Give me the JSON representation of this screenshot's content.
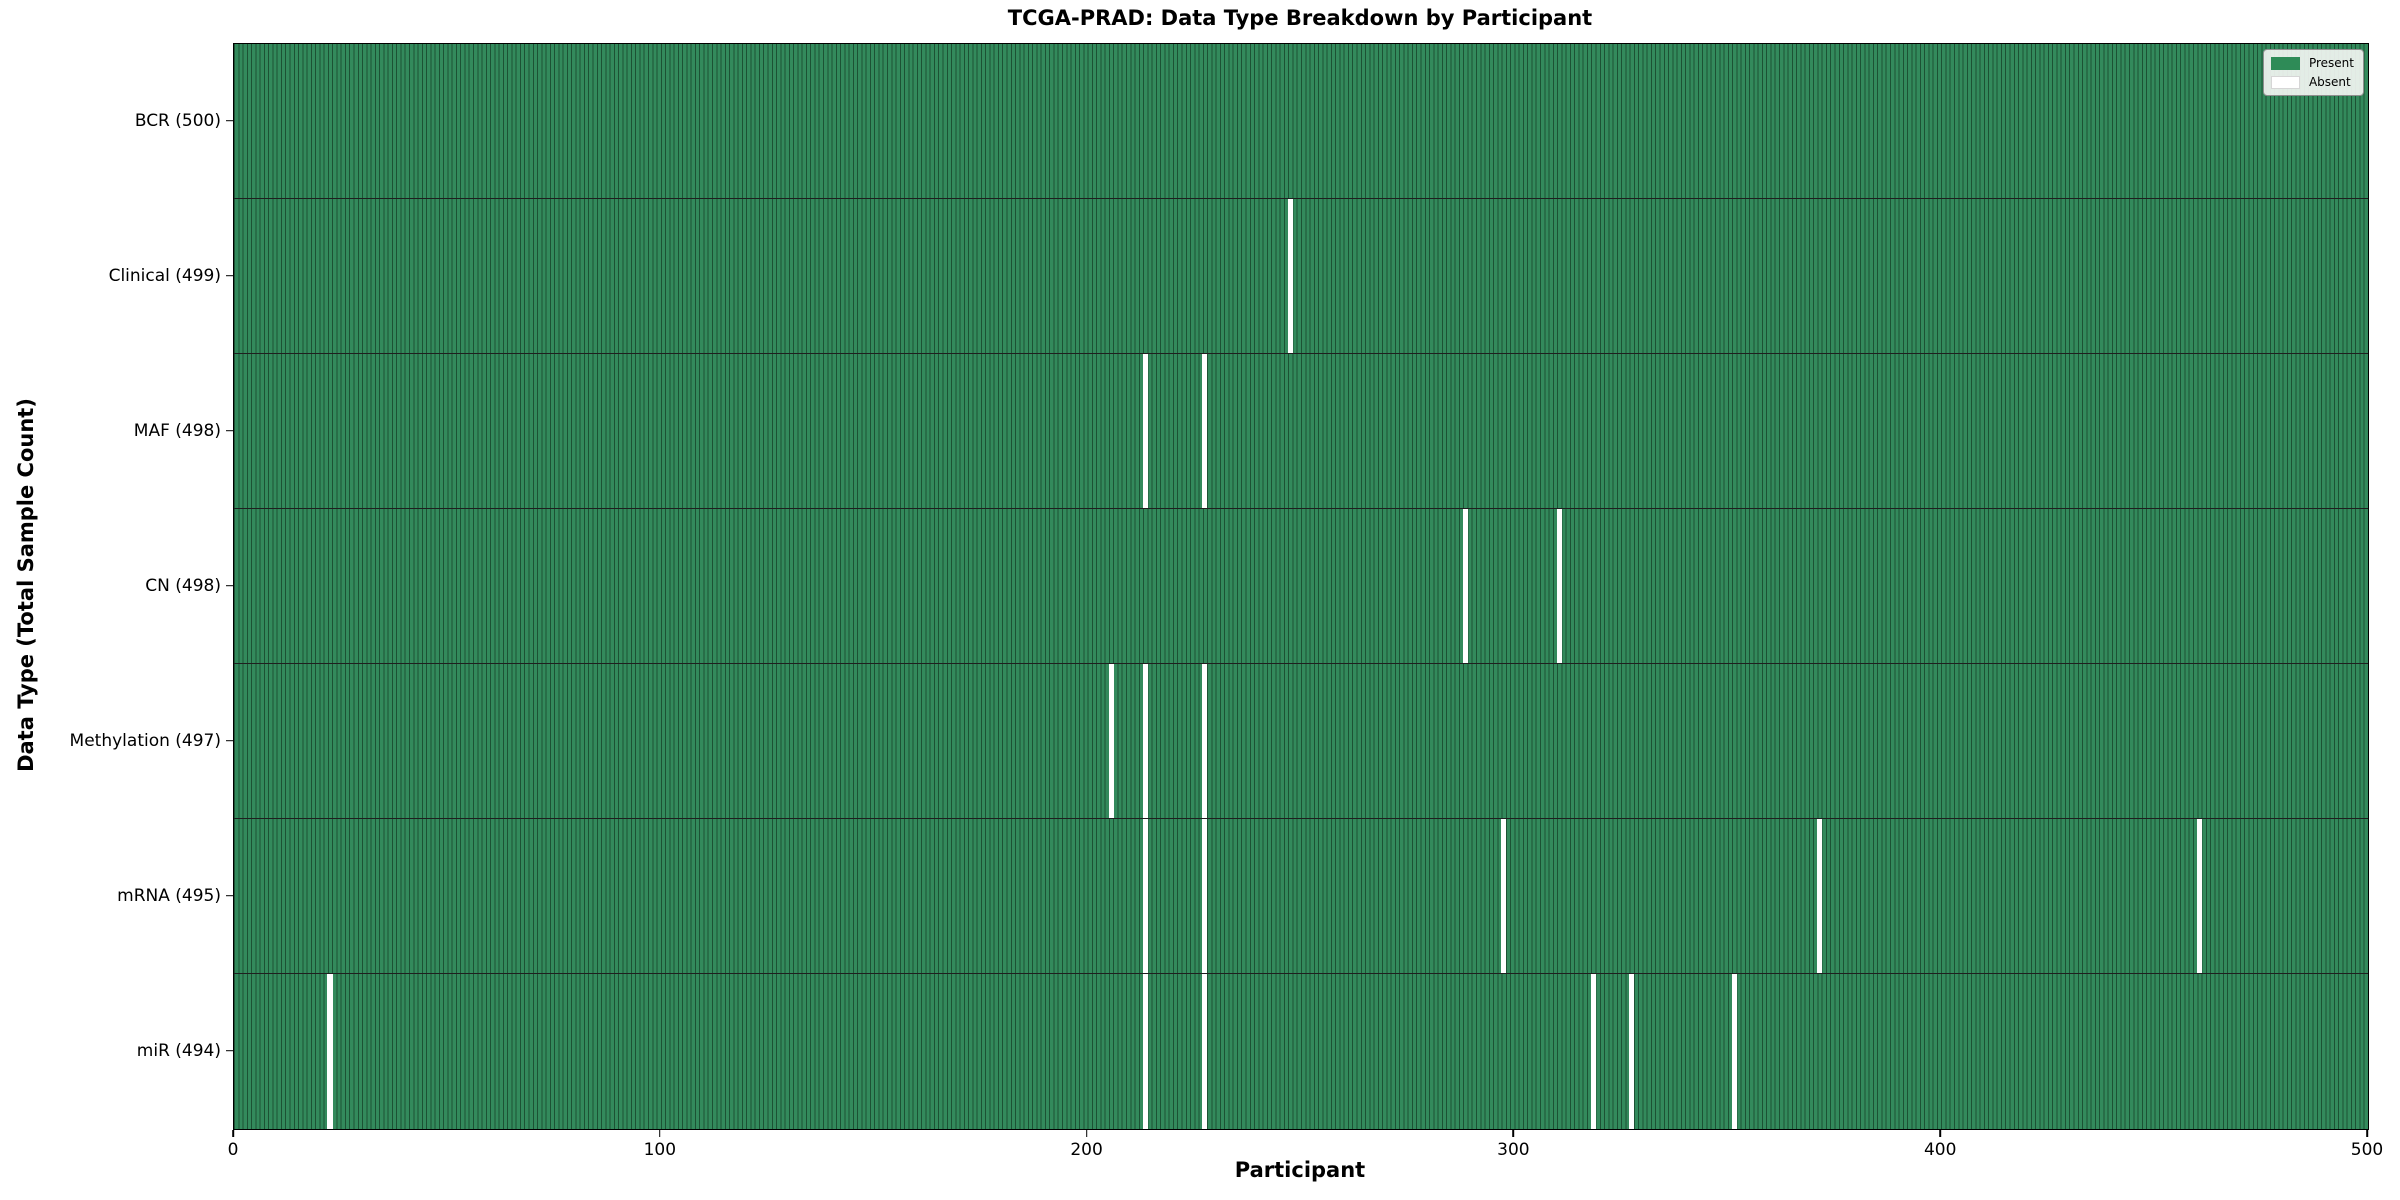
{
  "chart_data": {
    "type": "heatmap",
    "title": "TCGA-PRAD: Data Type Breakdown by Participant",
    "xlabel": "Participant",
    "ylabel": "Data Type (Total Sample Count)",
    "x_range": [
      0,
      500
    ],
    "x_ticks": [
      "0",
      "100",
      "200",
      "300",
      "400",
      "500"
    ],
    "n_participants": 500,
    "grid": false,
    "legend_position": "upper right",
    "legend": [
      {
        "label": "Present",
        "color": "#2e8b57",
        "border": "#2e8b57"
      },
      {
        "label": "Absent",
        "color": "#ffffff",
        "border": "#d6d6d6"
      }
    ],
    "colors": {
      "present_fill": "#338a5c",
      "cell_edge": "#1c5234",
      "absent": "#ffffff",
      "row_divider": "#1f1f1f"
    },
    "rows": [
      {
        "label": "BCR (500)",
        "data_type": "BCR",
        "total_samples": 500,
        "absent_participants": []
      },
      {
        "label": "Clinical (499)",
        "data_type": "Clinical",
        "total_samples": 499,
        "absent_participants": [
          247
        ]
      },
      {
        "label": "MAF (498)",
        "data_type": "MAF",
        "total_samples": 498,
        "absent_participants": [
          213,
          227
        ]
      },
      {
        "label": "CN (498)",
        "data_type": "CN",
        "total_samples": 498,
        "absent_participants": [
          288,
          310
        ]
      },
      {
        "label": "Methylation (497)",
        "data_type": "Methylation",
        "total_samples": 497,
        "absent_participants": [
          205,
          213,
          227
        ]
      },
      {
        "label": "mRNA (495)",
        "data_type": "mRNA",
        "total_samples": 495,
        "absent_participants": [
          213,
          227,
          297,
          371,
          460
        ]
      },
      {
        "label": "miR (494)",
        "data_type": "miR",
        "total_samples": 494,
        "absent_participants": [
          22,
          213,
          227,
          318,
          327,
          351
        ]
      }
    ]
  }
}
